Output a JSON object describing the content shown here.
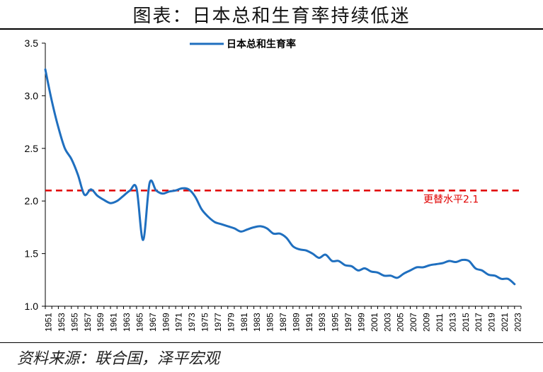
{
  "page": {
    "title": "图表：日本总和生育率持续低迷",
    "source": "资料来源：联合国，泽平宏观"
  },
  "colors": {
    "series": "#1f6fbf",
    "reference": "#e00000"
  },
  "chart_data": {
    "type": "line",
    "title": "图表：日本总和生育率持续低迷",
    "xlabel": "",
    "ylabel": "",
    "ylim": [
      1.0,
      3.5
    ],
    "yticks": [
      "1.0",
      "1.5",
      "2.0",
      "2.5",
      "3.0",
      "3.5"
    ],
    "xlim": [
      1951,
      2024
    ],
    "xticks": [
      "1951",
      "1953",
      "1955",
      "1957",
      "1959",
      "1961",
      "1963",
      "1965",
      "1967",
      "1969",
      "1971",
      "1973",
      "1975",
      "1977",
      "1979",
      "1981",
      "1983",
      "1985",
      "1987",
      "1989",
      "1991",
      "1993",
      "1995",
      "1997",
      "1999",
      "2001",
      "2003",
      "2005",
      "2007",
      "2009",
      "2011",
      "2013",
      "2015",
      "2017",
      "2019",
      "2021",
      "2023"
    ],
    "legend": {
      "position": "top-center"
    },
    "series": [
      {
        "name": "日本总和生育率",
        "x": [
          1951,
          1952,
          1953,
          1954,
          1955,
          1956,
          1957,
          1958,
          1959,
          1960,
          1961,
          1962,
          1963,
          1964,
          1965,
          1966,
          1967,
          1968,
          1969,
          1970,
          1971,
          1972,
          1973,
          1974,
          1975,
          1976,
          1977,
          1978,
          1979,
          1980,
          1981,
          1982,
          1983,
          1984,
          1985,
          1986,
          1987,
          1988,
          1989,
          1990,
          1991,
          1992,
          1993,
          1994,
          1995,
          1996,
          1997,
          1998,
          1999,
          2000,
          2001,
          2002,
          2003,
          2004,
          2005,
          2006,
          2007,
          2008,
          2009,
          2010,
          2011,
          2012,
          2013,
          2014,
          2015,
          2016,
          2017,
          2018,
          2019,
          2020,
          2021,
          2022,
          2023
        ],
        "values": [
          3.25,
          2.95,
          2.7,
          2.5,
          2.4,
          2.25,
          2.06,
          2.11,
          2.05,
          2.01,
          1.98,
          2.0,
          2.05,
          2.1,
          2.12,
          1.63,
          2.17,
          2.1,
          2.07,
          2.09,
          2.1,
          2.12,
          2.11,
          2.04,
          1.92,
          1.85,
          1.8,
          1.78,
          1.76,
          1.74,
          1.71,
          1.73,
          1.75,
          1.76,
          1.74,
          1.69,
          1.69,
          1.65,
          1.57,
          1.54,
          1.53,
          1.5,
          1.46,
          1.49,
          1.43,
          1.43,
          1.39,
          1.38,
          1.34,
          1.36,
          1.33,
          1.32,
          1.29,
          1.29,
          1.27,
          1.31,
          1.34,
          1.37,
          1.37,
          1.39,
          1.4,
          1.41,
          1.43,
          1.42,
          1.44,
          1.43,
          1.36,
          1.34,
          1.3,
          1.29,
          1.26,
          1.26,
          1.21
        ]
      }
    ],
    "reference_line": {
      "value": 2.1,
      "label": "更替水平2.1"
    }
  }
}
